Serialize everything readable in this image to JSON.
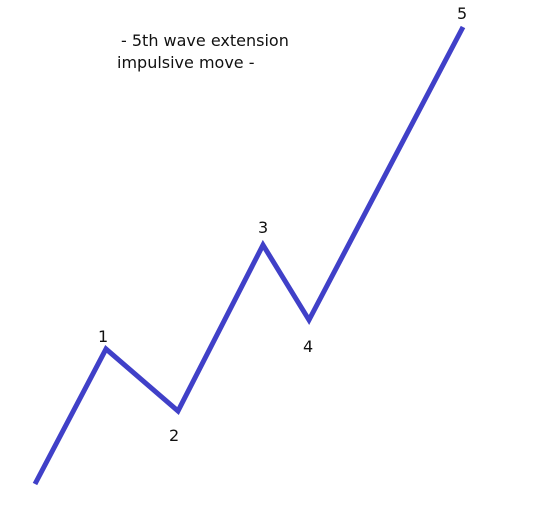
{
  "caption": {
    "line1": "- 5th wave extension",
    "line2": "impulsive move -"
  },
  "wave": {
    "color": "#4040c8",
    "labels": [
      "1",
      "2",
      "3",
      "4",
      "5"
    ]
  }
}
